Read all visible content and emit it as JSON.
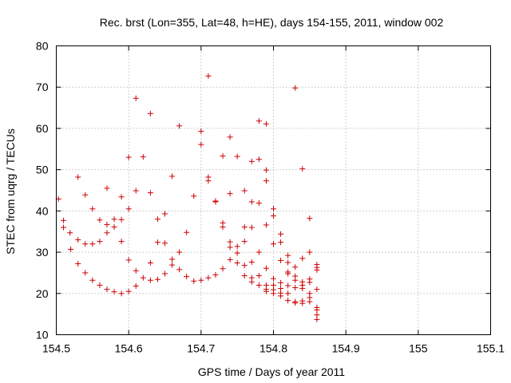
{
  "chart_data": {
    "type": "scatter",
    "title": "Rec. brst (Lon=355, Lat=48, h=HE), days 154-155, 2011, window 002",
    "xlabel": "GPS time / Days of year 2011",
    "ylabel": "STEC from uqrg / TECUs",
    "xlim": [
      154.5,
      155.1
    ],
    "ylim": [
      10,
      80
    ],
    "xticks": [
      "154.5",
      "154.6",
      "154.7",
      "154.8",
      "154.9",
      "155",
      "155.1"
    ],
    "yticks": [
      "10",
      "20",
      "30",
      "40",
      "50",
      "60",
      "70",
      "80"
    ],
    "grid": true,
    "legend": "none",
    "marker_color": "#cc0000",
    "series": [
      {
        "points": [
          [
            154.503,
            42.9
          ],
          [
            154.51,
            37.7
          ],
          [
            154.51,
            36.0
          ],
          [
            154.519,
            34.7
          ],
          [
            154.52,
            30.7
          ],
          [
            154.53,
            48.2
          ],
          [
            154.53,
            33.0
          ],
          [
            154.53,
            27.2
          ],
          [
            154.54,
            43.9
          ],
          [
            154.54,
            32.0
          ],
          [
            154.54,
            25.0
          ],
          [
            154.55,
            40.5
          ],
          [
            154.55,
            32.0
          ],
          [
            154.55,
            23.2
          ],
          [
            154.56,
            37.8
          ],
          [
            154.56,
            32.6
          ],
          [
            154.56,
            22.0
          ],
          [
            154.57,
            45.5
          ],
          [
            154.57,
            36.7
          ],
          [
            154.57,
            34.7
          ],
          [
            154.57,
            21.0
          ],
          [
            154.58,
            38.0
          ],
          [
            154.58,
            36.1
          ],
          [
            154.58,
            20.4
          ],
          [
            154.59,
            43.4
          ],
          [
            154.59,
            37.9
          ],
          [
            154.59,
            32.6
          ],
          [
            154.59,
            20.0
          ],
          [
            154.6,
            53.0
          ],
          [
            154.6,
            40.5
          ],
          [
            154.6,
            28.1
          ],
          [
            154.6,
            20.5
          ],
          [
            154.61,
            67.3
          ],
          [
            154.61,
            44.9
          ],
          [
            154.61,
            25.5
          ],
          [
            154.61,
            21.8
          ],
          [
            154.62,
            53.1
          ],
          [
            154.62,
            23.8
          ],
          [
            154.63,
            63.6
          ],
          [
            154.63,
            44.4
          ],
          [
            154.63,
            27.4
          ],
          [
            154.63,
            23.2
          ],
          [
            154.64,
            38.0
          ],
          [
            154.64,
            32.4
          ],
          [
            154.64,
            23.4
          ],
          [
            154.65,
            39.3
          ],
          [
            154.65,
            32.2
          ],
          [
            154.65,
            24.8
          ],
          [
            154.66,
            48.4
          ],
          [
            154.66,
            28.3
          ],
          [
            154.66,
            26.9
          ],
          [
            154.67,
            60.6
          ],
          [
            154.67,
            30.0
          ],
          [
            154.67,
            25.8
          ],
          [
            154.68,
            34.8
          ],
          [
            154.68,
            24.1
          ],
          [
            154.69,
            43.6
          ],
          [
            154.69,
            23.0
          ],
          [
            154.7,
            59.3
          ],
          [
            154.7,
            56.1
          ],
          [
            154.7,
            23.2
          ],
          [
            154.71,
            72.7
          ],
          [
            154.71,
            48.2
          ],
          [
            154.71,
            47.3
          ],
          [
            154.71,
            23.8
          ],
          [
            154.72,
            42.4
          ],
          [
            154.72,
            42.2
          ],
          [
            154.72,
            24.5
          ],
          [
            154.73,
            53.3
          ],
          [
            154.73,
            37.1
          ],
          [
            154.73,
            36.1
          ],
          [
            154.73,
            26.0
          ],
          [
            154.74,
            57.9
          ],
          [
            154.74,
            44.2
          ],
          [
            154.74,
            32.5
          ],
          [
            154.74,
            31.2
          ],
          [
            154.74,
            28.2
          ],
          [
            154.75,
            53.2
          ],
          [
            154.75,
            31.4
          ],
          [
            154.75,
            29.8
          ],
          [
            154.75,
            27.4
          ],
          [
            154.76,
            44.9
          ],
          [
            154.76,
            36.1
          ],
          [
            154.76,
            32.6
          ],
          [
            154.76,
            26.8
          ],
          [
            154.76,
            24.3
          ],
          [
            154.77,
            52.0
          ],
          [
            154.77,
            42.2
          ],
          [
            154.77,
            36.0
          ],
          [
            154.77,
            27.6
          ],
          [
            154.77,
            23.8
          ],
          [
            154.77,
            22.8
          ],
          [
            154.78,
            61.8
          ],
          [
            154.78,
            52.5
          ],
          [
            154.78,
            41.9
          ],
          [
            154.78,
            30.0
          ],
          [
            154.78,
            24.3
          ],
          [
            154.78,
            22.0
          ],
          [
            154.79,
            61.1
          ],
          [
            154.79,
            49.9
          ],
          [
            154.79,
            47.3
          ],
          [
            154.79,
            36.6
          ],
          [
            154.79,
            26.1
          ],
          [
            154.79,
            22.0
          ],
          [
            154.79,
            21.0
          ],
          [
            154.79,
            20.5
          ],
          [
            154.8,
            40.5
          ],
          [
            154.8,
            38.8
          ],
          [
            154.8,
            32.0
          ],
          [
            154.8,
            23.6
          ],
          [
            154.8,
            22.0
          ],
          [
            154.8,
            20.9
          ],
          [
            154.8,
            20.0
          ],
          [
            154.81,
            34.4
          ],
          [
            154.81,
            32.4
          ],
          [
            154.81,
            28.0
          ],
          [
            154.81,
            22.6
          ],
          [
            154.81,
            21.2
          ],
          [
            154.81,
            20.1
          ],
          [
            154.81,
            19.4
          ],
          [
            154.82,
            29.2
          ],
          [
            154.82,
            27.5
          ],
          [
            154.82,
            25.2
          ],
          [
            154.82,
            24.8
          ],
          [
            154.82,
            21.9
          ],
          [
            154.82,
            20.0
          ],
          [
            154.82,
            18.3
          ],
          [
            154.83,
            69.8
          ],
          [
            154.83,
            26.4
          ],
          [
            154.83,
            24.2
          ],
          [
            154.83,
            23.2
          ],
          [
            154.83,
            21.4
          ],
          [
            154.83,
            18.0
          ],
          [
            154.83,
            17.7
          ],
          [
            154.84,
            50.2
          ],
          [
            154.84,
            28.5
          ],
          [
            154.84,
            22.8
          ],
          [
            154.84,
            22.0
          ],
          [
            154.84,
            21.2
          ],
          [
            154.84,
            18.2
          ],
          [
            154.84,
            17.6
          ],
          [
            154.85,
            38.2
          ],
          [
            154.85,
            30.0
          ],
          [
            154.85,
            23.5
          ],
          [
            154.85,
            22.7
          ],
          [
            154.85,
            20.0
          ],
          [
            154.85,
            19.0
          ],
          [
            154.85,
            18.0
          ],
          [
            154.86,
            27.0
          ],
          [
            154.86,
            26.3
          ],
          [
            154.86,
            25.7
          ],
          [
            154.86,
            21.0
          ],
          [
            154.86,
            16.6
          ],
          [
            154.86,
            16.0
          ],
          [
            154.86,
            14.8
          ],
          [
            154.86,
            13.7
          ]
        ]
      }
    ]
  }
}
